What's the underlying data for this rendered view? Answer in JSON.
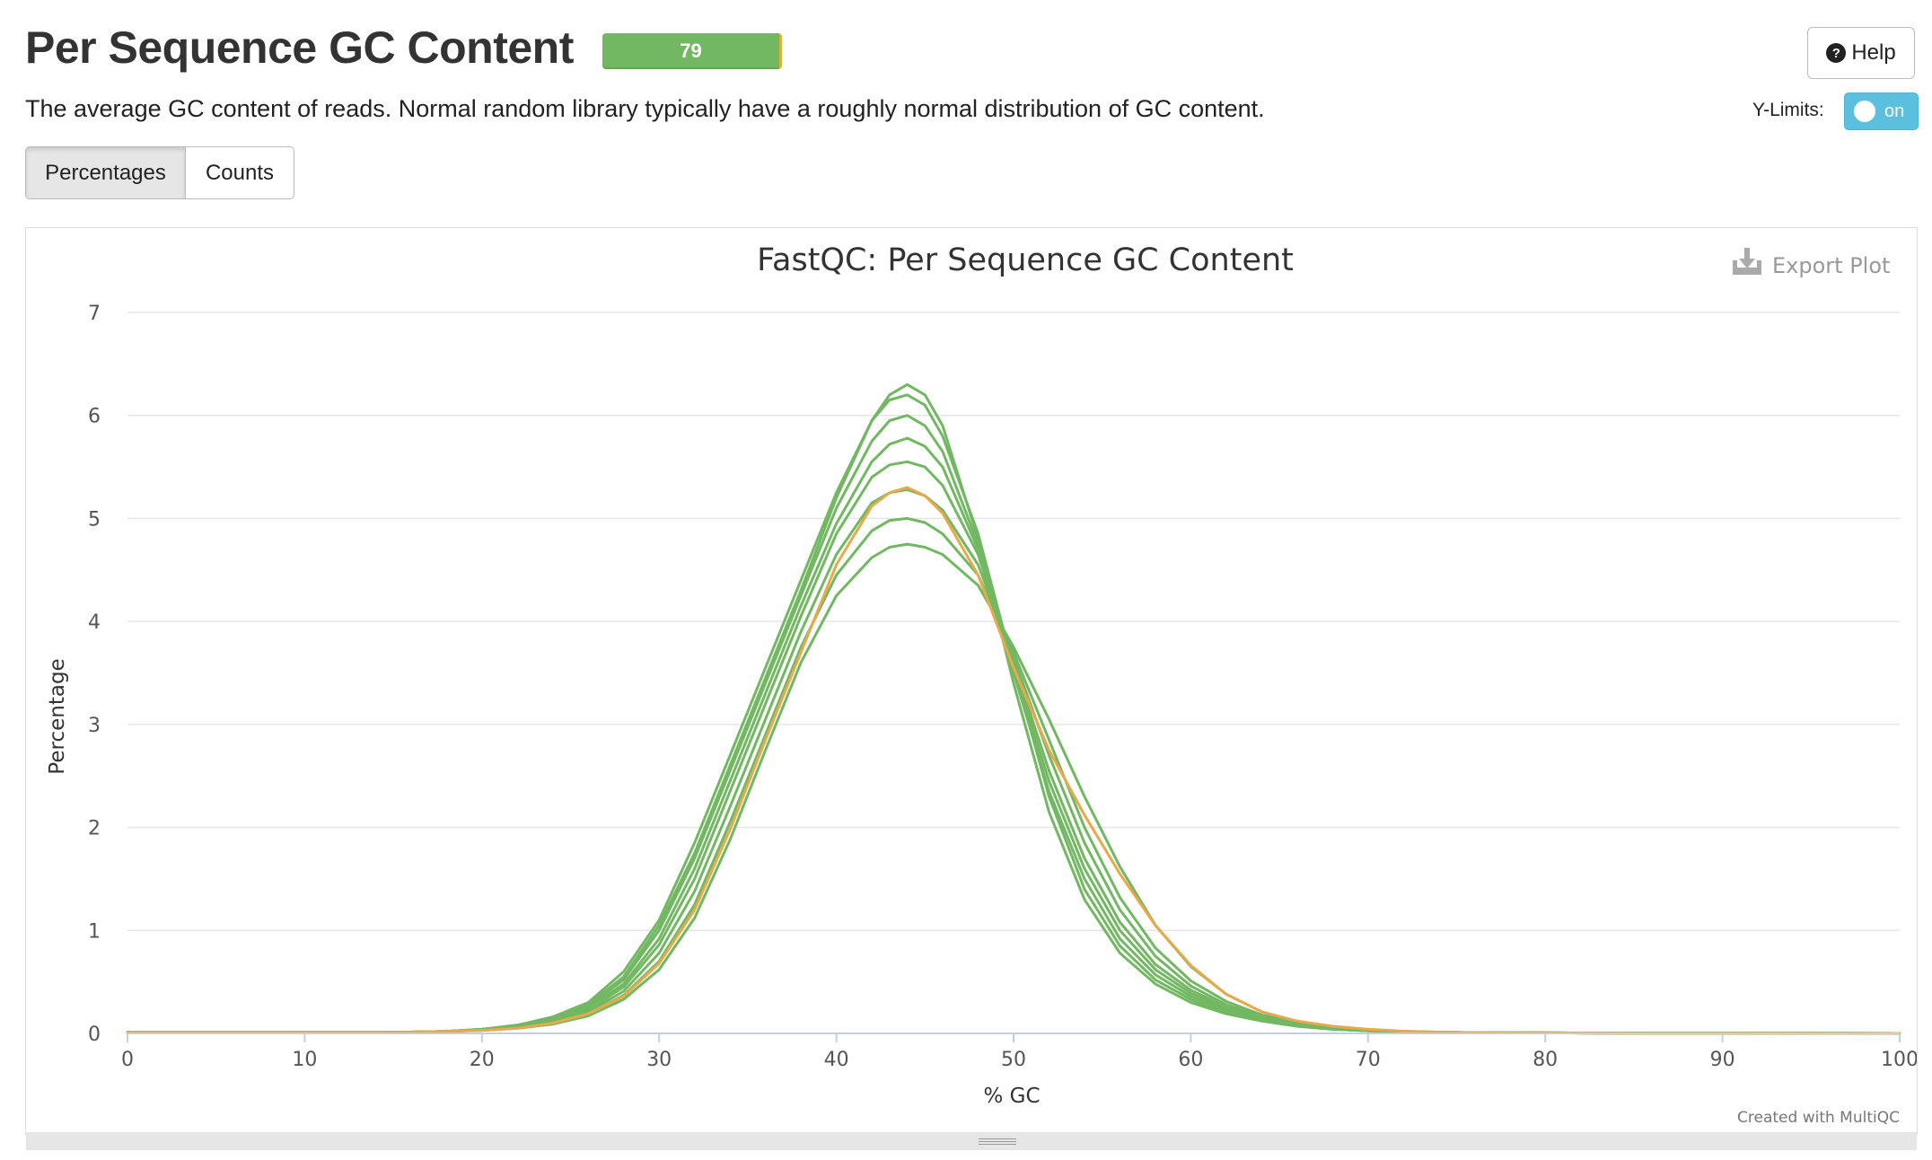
{
  "header": {
    "title": "Per Sequence GC Content",
    "status_count": "79",
    "description": "The average GC content of reads. Normal random library typically have a roughly normal distribution of GC content.",
    "help_label": "Help",
    "ylimits_label": "Y-Limits:",
    "ylimits_value": "on"
  },
  "toggle_buttons": {
    "percentages_label": "Percentages",
    "counts_label": "Counts",
    "active": "Percentages"
  },
  "plot": {
    "export_label": "Export Plot",
    "credit": "Created with MultiQC"
  },
  "colors": {
    "pass": "#72b862",
    "warn": "#e8a94b",
    "toggle": "#5bc0de"
  },
  "chart_data": {
    "type": "line",
    "title": "FastQC: Per Sequence GC Content",
    "xlabel": "% GC",
    "ylabel": "Percentage",
    "xlim": [
      0,
      100
    ],
    "ylim": [
      0,
      7
    ],
    "xticks": [
      "0",
      "10",
      "20",
      "30",
      "40",
      "50",
      "60",
      "70",
      "80",
      "90",
      "100"
    ],
    "yticks": [
      "0",
      "1",
      "2",
      "3",
      "4",
      "5",
      "6",
      "7"
    ],
    "grid": true,
    "legend": "none",
    "x": [
      0,
      5,
      10,
      15,
      18,
      20,
      22,
      24,
      26,
      28,
      30,
      32,
      34,
      36,
      38,
      40,
      42,
      43,
      44,
      45,
      46,
      48,
      50,
      52,
      54,
      56,
      58,
      60,
      62,
      64,
      66,
      68,
      70,
      72,
      74,
      76,
      80,
      85,
      90,
      95,
      100
    ],
    "series": [
      {
        "color": "#72b862",
        "values": [
          0.01,
          0.01,
          0.01,
          0.01,
          0.02,
          0.04,
          0.08,
          0.15,
          0.28,
          0.55,
          1.05,
          1.75,
          2.6,
          3.45,
          4.3,
          5.2,
          5.95,
          6.2,
          6.3,
          6.2,
          5.9,
          4.8,
          3.4,
          2.15,
          1.3,
          0.78,
          0.48,
          0.3,
          0.19,
          0.12,
          0.07,
          0.04,
          0.025,
          0.015,
          0.01,
          0.008,
          0.005,
          0.003,
          0.002,
          0.001,
          0.0
        ]
      },
      {
        "color": "#72b862",
        "values": [
          0.01,
          0.01,
          0.01,
          0.01,
          0.02,
          0.04,
          0.08,
          0.16,
          0.3,
          0.6,
          1.1,
          1.85,
          2.7,
          3.55,
          4.4,
          5.25,
          5.95,
          6.15,
          6.2,
          6.1,
          5.8,
          4.85,
          3.55,
          2.3,
          1.4,
          0.85,
          0.52,
          0.33,
          0.2,
          0.12,
          0.07,
          0.04,
          0.025,
          0.015,
          0.01,
          0.008,
          0.005,
          0.003,
          0.002,
          0.001,
          0.0
        ]
      },
      {
        "color": "#72b862",
        "values": [
          0.01,
          0.01,
          0.01,
          0.01,
          0.02,
          0.04,
          0.07,
          0.14,
          0.27,
          0.52,
          1.0,
          1.7,
          2.55,
          3.4,
          4.25,
          5.1,
          5.75,
          5.95,
          6.0,
          5.9,
          5.65,
          4.75,
          3.5,
          2.35,
          1.5,
          0.92,
          0.57,
          0.36,
          0.22,
          0.13,
          0.08,
          0.045,
          0.027,
          0.016,
          0.01,
          0.008,
          0.005,
          0.003,
          0.002,
          0.001,
          0.0
        ]
      },
      {
        "color": "#72b862",
        "values": [
          0.01,
          0.01,
          0.01,
          0.01,
          0.02,
          0.04,
          0.07,
          0.13,
          0.25,
          0.48,
          0.92,
          1.6,
          2.45,
          3.3,
          4.15,
          4.95,
          5.55,
          5.72,
          5.78,
          5.7,
          5.5,
          4.7,
          3.55,
          2.45,
          1.6,
          1.0,
          0.62,
          0.39,
          0.24,
          0.14,
          0.085,
          0.05,
          0.03,
          0.017,
          0.011,
          0.008,
          0.005,
          0.003,
          0.002,
          0.001,
          0.0
        ]
      },
      {
        "color": "#72b862",
        "values": [
          0.01,
          0.01,
          0.01,
          0.01,
          0.02,
          0.035,
          0.065,
          0.12,
          0.23,
          0.45,
          0.86,
          1.5,
          2.35,
          3.2,
          4.05,
          4.85,
          5.4,
          5.52,
          5.55,
          5.5,
          5.32,
          4.65,
          3.6,
          2.55,
          1.7,
          1.08,
          0.67,
          0.42,
          0.26,
          0.15,
          0.09,
          0.052,
          0.031,
          0.018,
          0.011,
          0.008,
          0.005,
          0.003,
          0.002,
          0.001,
          0.0
        ]
      },
      {
        "color": "#72b862",
        "values": [
          0.01,
          0.01,
          0.01,
          0.01,
          0.02,
          0.035,
          0.06,
          0.11,
          0.21,
          0.41,
          0.78,
          1.38,
          2.2,
          3.05,
          3.9,
          4.65,
          5.15,
          5.25,
          5.28,
          5.22,
          5.08,
          4.55,
          3.65,
          2.7,
          1.85,
          1.2,
          0.75,
          0.46,
          0.28,
          0.16,
          0.095,
          0.055,
          0.032,
          0.018,
          0.011,
          0.008,
          0.005,
          0.003,
          0.002,
          0.001,
          0.0
        ]
      },
      {
        "color": "#72b862",
        "values": [
          0.01,
          0.01,
          0.01,
          0.01,
          0.02,
          0.03,
          0.055,
          0.1,
          0.19,
          0.37,
          0.7,
          1.25,
          2.05,
          2.9,
          3.75,
          4.45,
          4.88,
          4.98,
          5.0,
          4.96,
          4.85,
          4.45,
          3.7,
          2.85,
          2.0,
          1.32,
          0.83,
          0.51,
          0.31,
          0.18,
          0.1,
          0.058,
          0.034,
          0.019,
          0.012,
          0.008,
          0.005,
          0.003,
          0.002,
          0.001,
          0.0
        ]
      },
      {
        "color": "#72b862",
        "values": [
          0.01,
          0.01,
          0.01,
          0.01,
          0.02,
          0.03,
          0.05,
          0.09,
          0.17,
          0.33,
          0.62,
          1.12,
          1.88,
          2.75,
          3.6,
          4.25,
          4.62,
          4.72,
          4.75,
          4.72,
          4.65,
          4.35,
          3.75,
          3.05,
          2.3,
          1.62,
          1.05,
          0.65,
          0.38,
          0.21,
          0.11,
          0.062,
          0.035,
          0.02,
          0.012,
          0.008,
          0.005,
          0.003,
          0.002,
          0.001,
          0.0
        ]
      },
      {
        "color": "#e8a94b",
        "values": [
          0.01,
          0.01,
          0.01,
          0.01,
          0.02,
          0.03,
          0.05,
          0.1,
          0.19,
          0.36,
          0.68,
          1.2,
          1.98,
          2.85,
          3.7,
          4.55,
          5.12,
          5.25,
          5.3,
          5.22,
          5.05,
          4.45,
          3.55,
          2.75,
          2.12,
          1.55,
          1.05,
          0.66,
          0.38,
          0.21,
          0.12,
          0.07,
          0.04,
          0.022,
          0.013,
          0.008,
          0.005,
          0.003,
          0.002,
          0.001,
          0.0
        ]
      }
    ]
  }
}
